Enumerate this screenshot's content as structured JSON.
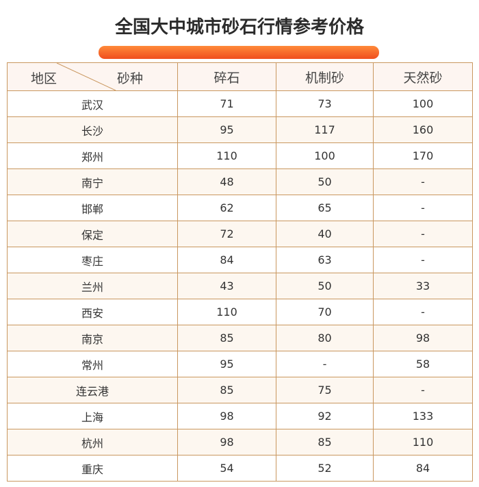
{
  "title": "全国大中城市砂石行情参考价格",
  "header": {
    "region": "地区",
    "type": "砂种",
    "cols": [
      "碎石",
      "机制砂",
      "天然砂"
    ]
  },
  "rows": [
    [
      "武汉",
      "71",
      "73",
      "100"
    ],
    [
      "长沙",
      "95",
      "117",
      "160"
    ],
    [
      "郑州",
      "110",
      "100",
      "170"
    ],
    [
      "南宁",
      "48",
      "50",
      "-"
    ],
    [
      "邯郸",
      "62",
      "65",
      "-"
    ],
    [
      "保定",
      "72",
      "40",
      "-"
    ],
    [
      "枣庄",
      "84",
      "63",
      "-"
    ],
    [
      "兰州",
      "43",
      "50",
      "33"
    ],
    [
      "西安",
      "110",
      "70",
      "-"
    ],
    [
      "南京",
      "85",
      "80",
      "98"
    ],
    [
      "常州",
      "95",
      "-",
      "58"
    ],
    [
      "连云港",
      "85",
      "75",
      "-"
    ],
    [
      "上海",
      "98",
      "92",
      "133"
    ],
    [
      "杭州",
      "98",
      "85",
      "110"
    ],
    [
      "重庆",
      "54",
      "52",
      "84"
    ]
  ],
  "colors": {
    "border": "#c9975f",
    "accent": "#f26a2a",
    "alt_row": "#fdf7f0"
  }
}
